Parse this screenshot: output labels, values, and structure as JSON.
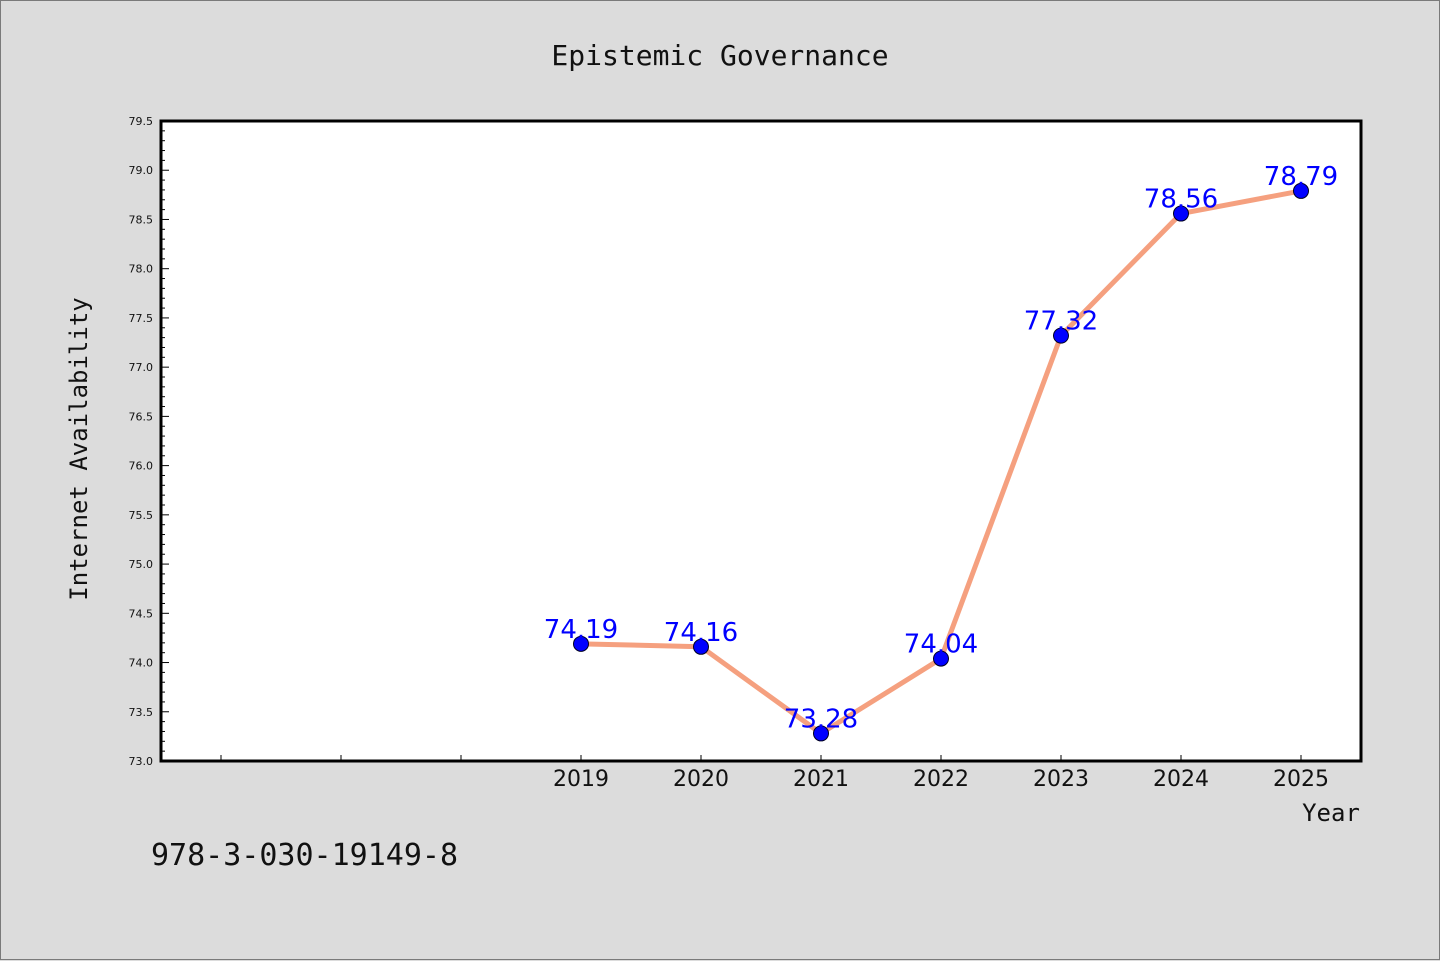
{
  "chart_data": {
    "type": "line",
    "title": "Epistemic Governance",
    "xlabel": "Year",
    "ylabel": "Internet Availability",
    "x": [
      "2019",
      "2020",
      "2021",
      "2022",
      "2023",
      "2024",
      "2025"
    ],
    "series": [
      {
        "values": [
          74.19,
          74.16,
          73.28,
          74.04,
          77.32,
          78.56,
          78.79
        ],
        "labels": [
          "74.19",
          "74.16",
          "73.28",
          "74.04",
          "77.32",
          "78.56",
          "78.79"
        ]
      }
    ],
    "ylim": [
      73.0,
      79.5
    ],
    "yticks": [
      "73.0",
      "73.5",
      "74.0",
      "74.5",
      "75.0",
      "75.5",
      "76.0",
      "76.5",
      "77.0",
      "77.5",
      "78.0",
      "78.5",
      "79.0",
      "79.5"
    ],
    "grid": false,
    "colors": {
      "line": "#f5a07f",
      "marker": "#0000ff",
      "label": "#0000ff",
      "background": "#dcdcdc",
      "plot_area": "#ffffff"
    }
  },
  "footer": {
    "identifier": "978-3-030-19149-8"
  }
}
